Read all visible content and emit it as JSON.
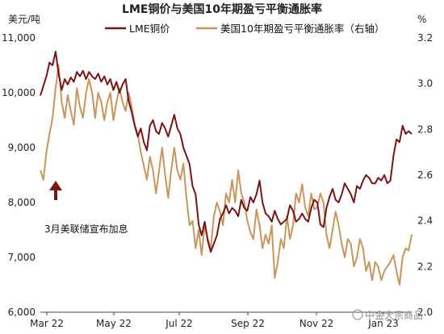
{
  "chart_data": {
    "type": "line",
    "title": "LME铜价与美国10年期盈亏平衡通胀率",
    "left_axis": {
      "unit": "美元/吨",
      "ylim": [
        6000,
        11000
      ],
      "ticks": [
        "11,000",
        "10,000",
        "9,000",
        "8,000",
        "7,000",
        "6,000"
      ]
    },
    "right_axis": {
      "unit": "%",
      "ylim": [
        2.0,
        3.2
      ],
      "ticks": [
        "3.2",
        "3.0",
        "2.8",
        "2.6",
        "2.4",
        "2.2",
        "2.0"
      ]
    },
    "x_ticks": [
      "Mar 22",
      "May 22",
      "Jul 22",
      "Sep 22",
      "Nov 22",
      "Jan 23"
    ],
    "legend_position": "top",
    "series": [
      {
        "name": "LME铜价",
        "axis": "left",
        "color": "#7b1416",
        "points": [
          [
            0,
            9950
          ],
          [
            2,
            10300
          ],
          [
            3,
            10550
          ],
          [
            4,
            10500
          ],
          [
            5,
            10750
          ],
          [
            6,
            10350
          ],
          [
            7,
            10050
          ],
          [
            8,
            10250
          ],
          [
            9,
            10150
          ],
          [
            10,
            10280
          ],
          [
            11,
            10200
          ],
          [
            12,
            10380
          ],
          [
            13,
            10300
          ],
          [
            14,
            10400
          ],
          [
            15,
            10250
          ],
          [
            16,
            10380
          ],
          [
            17,
            10300
          ],
          [
            18,
            10250
          ],
          [
            19,
            10350
          ],
          [
            20,
            10200
          ],
          [
            21,
            10300
          ],
          [
            22,
            10150
          ],
          [
            23,
            10250
          ],
          [
            24,
            10050
          ],
          [
            25,
            10200
          ],
          [
            26,
            10000
          ],
          [
            27,
            10150
          ],
          [
            28,
            10250
          ],
          [
            29,
            9850
          ],
          [
            30,
            9650
          ],
          [
            31,
            9400
          ],
          [
            32,
            9200
          ],
          [
            33,
            9350
          ],
          [
            34,
            9100
          ],
          [
            35,
            8950
          ],
          [
            36,
            9400
          ],
          [
            37,
            9500
          ],
          [
            38,
            9300
          ],
          [
            39,
            9250
          ],
          [
            40,
            9450
          ],
          [
            41,
            9350
          ],
          [
            42,
            9200
          ],
          [
            43,
            9400
          ],
          [
            44,
            9600
          ],
          [
            45,
            9350
          ],
          [
            46,
            9250
          ],
          [
            47,
            9000
          ],
          [
            48,
            8850
          ],
          [
            49,
            8700
          ],
          [
            50,
            8300
          ],
          [
            51,
            8150
          ],
          [
            52,
            7600
          ],
          [
            53,
            7400
          ],
          [
            54,
            7650
          ],
          [
            55,
            7300
          ],
          [
            56,
            7100
          ],
          [
            57,
            7250
          ],
          [
            58,
            7400
          ],
          [
            59,
            7700
          ],
          [
            60,
            7800
          ],
          [
            61,
            7950
          ],
          [
            62,
            7800
          ],
          [
            63,
            7900
          ],
          [
            64,
            7850
          ],
          [
            65,
            7750
          ],
          [
            66,
            8050
          ],
          [
            67,
            7900
          ],
          [
            68,
            7850
          ],
          [
            69,
            8100
          ],
          [
            70,
            8000
          ],
          [
            71,
            8150
          ],
          [
            72,
            8400
          ],
          [
            73,
            8000
          ],
          [
            74,
            7800
          ],
          [
            75,
            7750
          ],
          [
            76,
            7650
          ],
          [
            77,
            7850
          ],
          [
            78,
            7700
          ],
          [
            79,
            7600
          ],
          [
            80,
            7650
          ],
          [
            81,
            7700
          ],
          [
            82,
            7950
          ],
          [
            83,
            7850
          ],
          [
            84,
            7650
          ],
          [
            85,
            7700
          ],
          [
            86,
            7800
          ],
          [
            87,
            7700
          ],
          [
            88,
            7650
          ],
          [
            89,
            7900
          ],
          [
            90,
            8050
          ],
          [
            91,
            8000
          ],
          [
            92,
            7600
          ],
          [
            93,
            7550
          ],
          [
            94,
            7900
          ],
          [
            95,
            8100
          ],
          [
            96,
            8250
          ],
          [
            97,
            8050
          ],
          [
            98,
            8000
          ],
          [
            99,
            8150
          ],
          [
            100,
            8350
          ],
          [
            101,
            8250
          ],
          [
            102,
            8150
          ],
          [
            103,
            8000
          ],
          [
            104,
            8300
          ],
          [
            105,
            8250
          ],
          [
            106,
            8400
          ],
          [
            107,
            8500
          ],
          [
            108,
            8450
          ],
          [
            109,
            8350
          ],
          [
            110,
            8350
          ],
          [
            111,
            8450
          ],
          [
            112,
            8400
          ],
          [
            113,
            8500
          ],
          [
            114,
            8350
          ],
          [
            115,
            8400
          ],
          [
            116,
            8850
          ],
          [
            117,
            9150
          ],
          [
            118,
            9100
          ],
          [
            119,
            9400
          ],
          [
            120,
            9250
          ],
          [
            121,
            9300
          ],
          [
            122,
            9250
          ]
        ]
      },
      {
        "name": "美国10年期盈亏平衡通胀率（右轴）",
        "axis": "right",
        "color": "#c9955a",
        "points": [
          [
            0,
            2.62
          ],
          [
            1,
            2.58
          ],
          [
            2,
            2.7
          ],
          [
            3,
            2.78
          ],
          [
            4,
            2.85
          ],
          [
            5,
            2.98
          ],
          [
            6,
            3.08
          ],
          [
            7,
            2.92
          ],
          [
            8,
            2.85
          ],
          [
            9,
            2.95
          ],
          [
            10,
            2.88
          ],
          [
            11,
            2.82
          ],
          [
            12,
            2.98
          ],
          [
            13,
            2.9
          ],
          [
            14,
            2.85
          ],
          [
            15,
            2.96
          ],
          [
            16,
            3.02
          ],
          [
            17,
            2.96
          ],
          [
            18,
            2.85
          ],
          [
            19,
            2.96
          ],
          [
            20,
            2.92
          ],
          [
            21,
            2.84
          ],
          [
            22,
            2.92
          ],
          [
            23,
            2.96
          ],
          [
            24,
            2.84
          ],
          [
            25,
            2.92
          ],
          [
            26,
            2.98
          ],
          [
            27,
            2.92
          ],
          [
            28,
            2.88
          ],
          [
            29,
            2.96
          ],
          [
            30,
            2.9
          ],
          [
            31,
            2.82
          ],
          [
            32,
            2.78
          ],
          [
            33,
            2.7
          ],
          [
            34,
            2.64
          ],
          [
            35,
            2.58
          ],
          [
            36,
            2.68
          ],
          [
            37,
            2.62
          ],
          [
            38,
            2.52
          ],
          [
            39,
            2.62
          ],
          [
            40,
            2.72
          ],
          [
            41,
            2.6
          ],
          [
            42,
            2.5
          ],
          [
            43,
            2.62
          ],
          [
            44,
            2.72
          ],
          [
            45,
            2.62
          ],
          [
            46,
            2.58
          ],
          [
            47,
            2.65
          ],
          [
            48,
            2.5
          ],
          [
            49,
            2.38
          ],
          [
            50,
            2.4
          ],
          [
            51,
            2.28
          ],
          [
            52,
            2.36
          ],
          [
            53,
            2.25
          ],
          [
            54,
            2.38
          ],
          [
            55,
            2.32
          ],
          [
            56,
            2.28
          ],
          [
            57,
            2.42
          ],
          [
            58,
            2.48
          ],
          [
            59,
            2.44
          ],
          [
            60,
            2.38
          ],
          [
            61,
            2.52
          ],
          [
            62,
            2.48
          ],
          [
            63,
            2.58
          ],
          [
            64,
            2.48
          ],
          [
            65,
            2.62
          ],
          [
            66,
            2.52
          ],
          [
            67,
            2.48
          ],
          [
            68,
            2.4
          ],
          [
            69,
            2.35
          ],
          [
            70,
            2.32
          ],
          [
            71,
            2.45
          ],
          [
            72,
            2.38
          ],
          [
            73,
            2.28
          ],
          [
            74,
            2.34
          ],
          [
            75,
            2.3
          ],
          [
            76,
            2.38
          ],
          [
            77,
            2.15
          ],
          [
            78,
            2.22
          ],
          [
            79,
            2.32
          ],
          [
            80,
            2.28
          ],
          [
            81,
            2.42
          ],
          [
            82,
            2.32
          ],
          [
            83,
            2.38
          ],
          [
            84,
            2.52
          ],
          [
            85,
            2.48
          ],
          [
            86,
            2.56
          ],
          [
            87,
            2.46
          ],
          [
            88,
            2.42
          ],
          [
            89,
            2.52
          ],
          [
            90,
            2.45
          ],
          [
            91,
            2.46
          ],
          [
            92,
            2.52
          ],
          [
            93,
            2.48
          ],
          [
            94,
            2.34
          ],
          [
            95,
            2.28
          ],
          [
            96,
            2.36
          ],
          [
            97,
            2.44
          ],
          [
            98,
            2.38
          ],
          [
            99,
            2.3
          ],
          [
            100,
            2.24
          ],
          [
            101,
            2.32
          ],
          [
            102,
            2.3
          ],
          [
            103,
            2.2
          ],
          [
            104,
            2.24
          ],
          [
            105,
            2.32
          ],
          [
            106,
            2.28
          ],
          [
            107,
            2.18
          ],
          [
            108,
            2.22
          ],
          [
            109,
            2.14
          ],
          [
            110,
            2.22
          ],
          [
            111,
            2.2
          ],
          [
            112,
            2.14
          ],
          [
            113,
            2.18
          ],
          [
            114,
            2.2
          ],
          [
            115,
            2.22
          ],
          [
            116,
            2.25
          ],
          [
            117,
            2.18
          ],
          [
            118,
            2.12
          ],
          [
            119,
            2.24
          ],
          [
            120,
            2.28
          ],
          [
            121,
            2.27
          ],
          [
            122,
            2.34
          ]
        ]
      }
    ],
    "annotation": {
      "text": "3月美联储宣布加息",
      "arrow_color": "#7b1416"
    },
    "watermark": "中金大宗商品"
  }
}
